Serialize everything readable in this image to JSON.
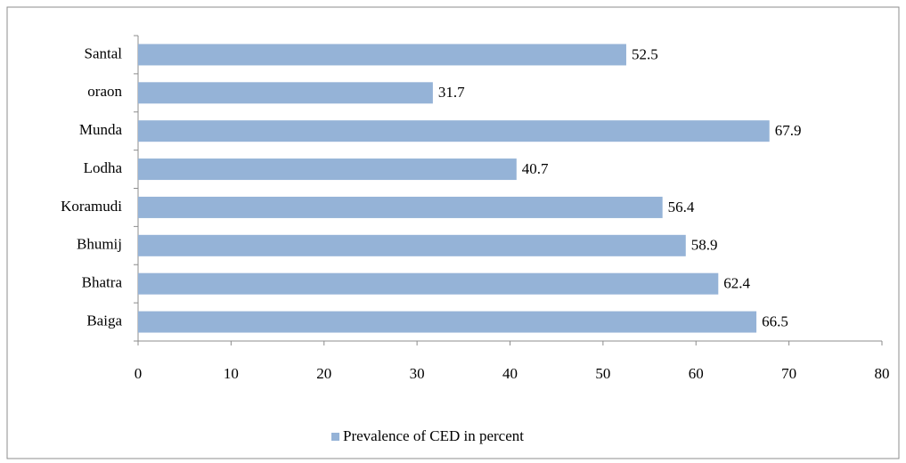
{
  "chart_data": {
    "type": "bar",
    "orientation": "horizontal",
    "categories": [
      "Santal",
      "oraon",
      "Munda",
      "Lodha",
      "Koramudi",
      "Bhumij",
      "Bhatra",
      "Baiga"
    ],
    "series": [
      {
        "name": "Prevalence of CED in percent",
        "color": "#95b3d7",
        "values": [
          52.5,
          31.7,
          67.9,
          40.7,
          56.4,
          58.9,
          62.4,
          66.5
        ]
      }
    ],
    "xlim": [
      0,
      80
    ],
    "xticks": [
      0,
      10,
      20,
      30,
      40,
      50,
      60,
      70,
      80
    ],
    "grid": false,
    "legend": "bottom"
  }
}
